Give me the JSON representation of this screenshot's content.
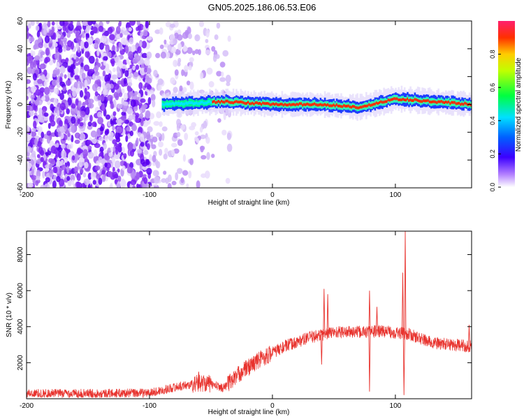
{
  "title": "GN05.2025.186.06.53.E06",
  "chart_data": [
    {
      "type": "heatmap",
      "xlabel": "Height of straight line (km)",
      "ylabel": "Frequency (Hz)",
      "xlim": [
        -200,
        162
      ],
      "ylim": [
        -60,
        60
      ],
      "xticks": [
        -200,
        -100,
        0,
        100
      ],
      "yticks": [
        60,
        40,
        20,
        0,
        -20,
        -40,
        -60
      ],
      "colorbar": {
        "label": "Normalized spectral amplitude",
        "range": [
          0,
          1
        ],
        "ticks": [
          "0.0",
          "0.2",
          "0.4",
          "0.6",
          "0.8"
        ]
      },
      "band": {
        "center_hz": [
          {
            "x": -90,
            "y": 0
          },
          {
            "x": -40,
            "y": 2
          },
          {
            "x": 0,
            "y": 0
          },
          {
            "x": 40,
            "y": 0
          },
          {
            "x": 70,
            "y": -2
          },
          {
            "x": 100,
            "y": 4
          },
          {
            "x": 162,
            "y": 0
          }
        ],
        "noise_region_x": [
          -200,
          -40
        ]
      }
    },
    {
      "type": "line",
      "xlabel": "Height of straight line (km)",
      "ylabel": "SNR (10 * v/v)",
      "xlim": [
        -200,
        162
      ],
      "ylim": [
        0,
        9300
      ],
      "xticks": [
        -200,
        -100,
        0,
        100
      ],
      "yticks": [
        2000,
        4000,
        6000,
        8000
      ],
      "color": "#e8332e",
      "series_envelope": [
        {
          "x": -200,
          "y": 300
        },
        {
          "x": -150,
          "y": 300
        },
        {
          "x": -100,
          "y": 320
        },
        {
          "x": -75,
          "y": 700
        },
        {
          "x": -55,
          "y": 900
        },
        {
          "x": -40,
          "y": 600
        },
        {
          "x": -25,
          "y": 1500
        },
        {
          "x": -10,
          "y": 2200
        },
        {
          "x": 10,
          "y": 2900
        },
        {
          "x": 30,
          "y": 3400
        },
        {
          "x": 50,
          "y": 3700
        },
        {
          "x": 70,
          "y": 3700
        },
        {
          "x": 90,
          "y": 3750
        },
        {
          "x": 110,
          "y": 3600
        },
        {
          "x": 130,
          "y": 3100
        },
        {
          "x": 162,
          "y": 2900
        }
      ],
      "spikes": [
        {
          "x": -60,
          "y": 1500
        },
        {
          "x": -35,
          "y": 1300
        },
        {
          "x": 42,
          "y": 6100
        },
        {
          "x": 45,
          "y": 5800
        },
        {
          "x": 79,
          "y": 6000
        },
        {
          "x": 85,
          "y": 5100
        },
        {
          "x": 106,
          "y": 7000
        },
        {
          "x": 108,
          "y": 9300
        },
        {
          "x": 160,
          "y": 4100
        }
      ],
      "dips": [
        {
          "x": 40,
          "y": 1900
        },
        {
          "x": 79,
          "y": 400
        },
        {
          "x": 107,
          "y": 200
        }
      ]
    }
  ]
}
